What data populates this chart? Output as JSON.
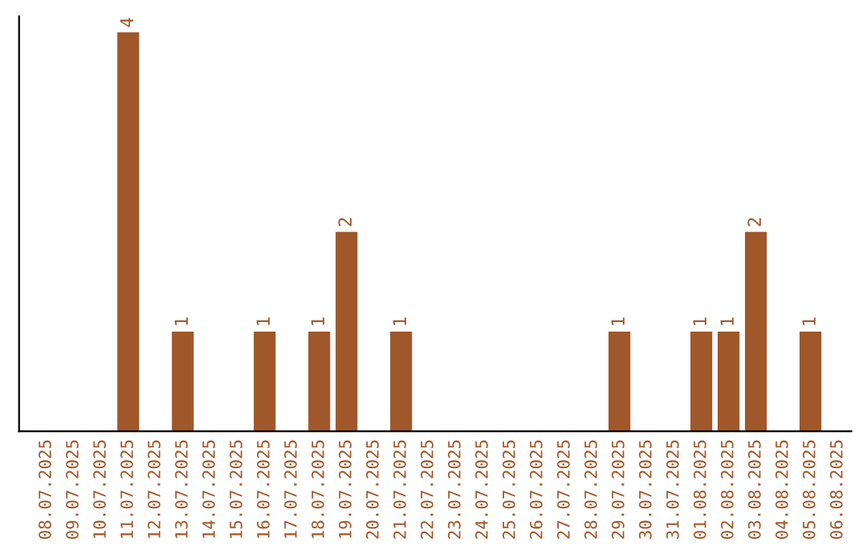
{
  "chart_data": {
    "type": "bar",
    "categories": [
      "08.07.2025",
      "09.07.2025",
      "10.07.2025",
      "11.07.2025",
      "12.07.2025",
      "13.07.2025",
      "14.07.2025",
      "15.07.2025",
      "16.07.2025",
      "17.07.2025",
      "18.07.2025",
      "19.07.2025",
      "20.07.2025",
      "21.07.2025",
      "22.07.2025",
      "23.07.2025",
      "24.07.2025",
      "25.07.2025",
      "26.07.2025",
      "27.07.2025",
      "28.07.2025",
      "29.07.2025",
      "30.07.2025",
      "31.07.2025",
      "01.08.2025",
      "02.08.2025",
      "03.08.2025",
      "04.08.2025",
      "05.08.2025",
      "06.08.2025"
    ],
    "values": [
      0,
      0,
      0,
      4,
      0,
      1,
      0,
      0,
      1,
      0,
      1,
      2,
      0,
      1,
      0,
      0,
      0,
      0,
      0,
      0,
      0,
      1,
      0,
      0,
      1,
      1,
      2,
      0,
      1,
      0
    ],
    "value_labels": [
      null,
      null,
      null,
      "4",
      null,
      "1",
      null,
      null,
      "1",
      null,
      "1",
      "2",
      null,
      "1",
      null,
      null,
      null,
      null,
      null,
      null,
      null,
      "1",
      null,
      null,
      "1",
      "1",
      "2",
      null,
      "1",
      null
    ],
    "color": "#a0572a",
    "tick_labels": "x",
    "grid": false,
    "legend": false
  }
}
